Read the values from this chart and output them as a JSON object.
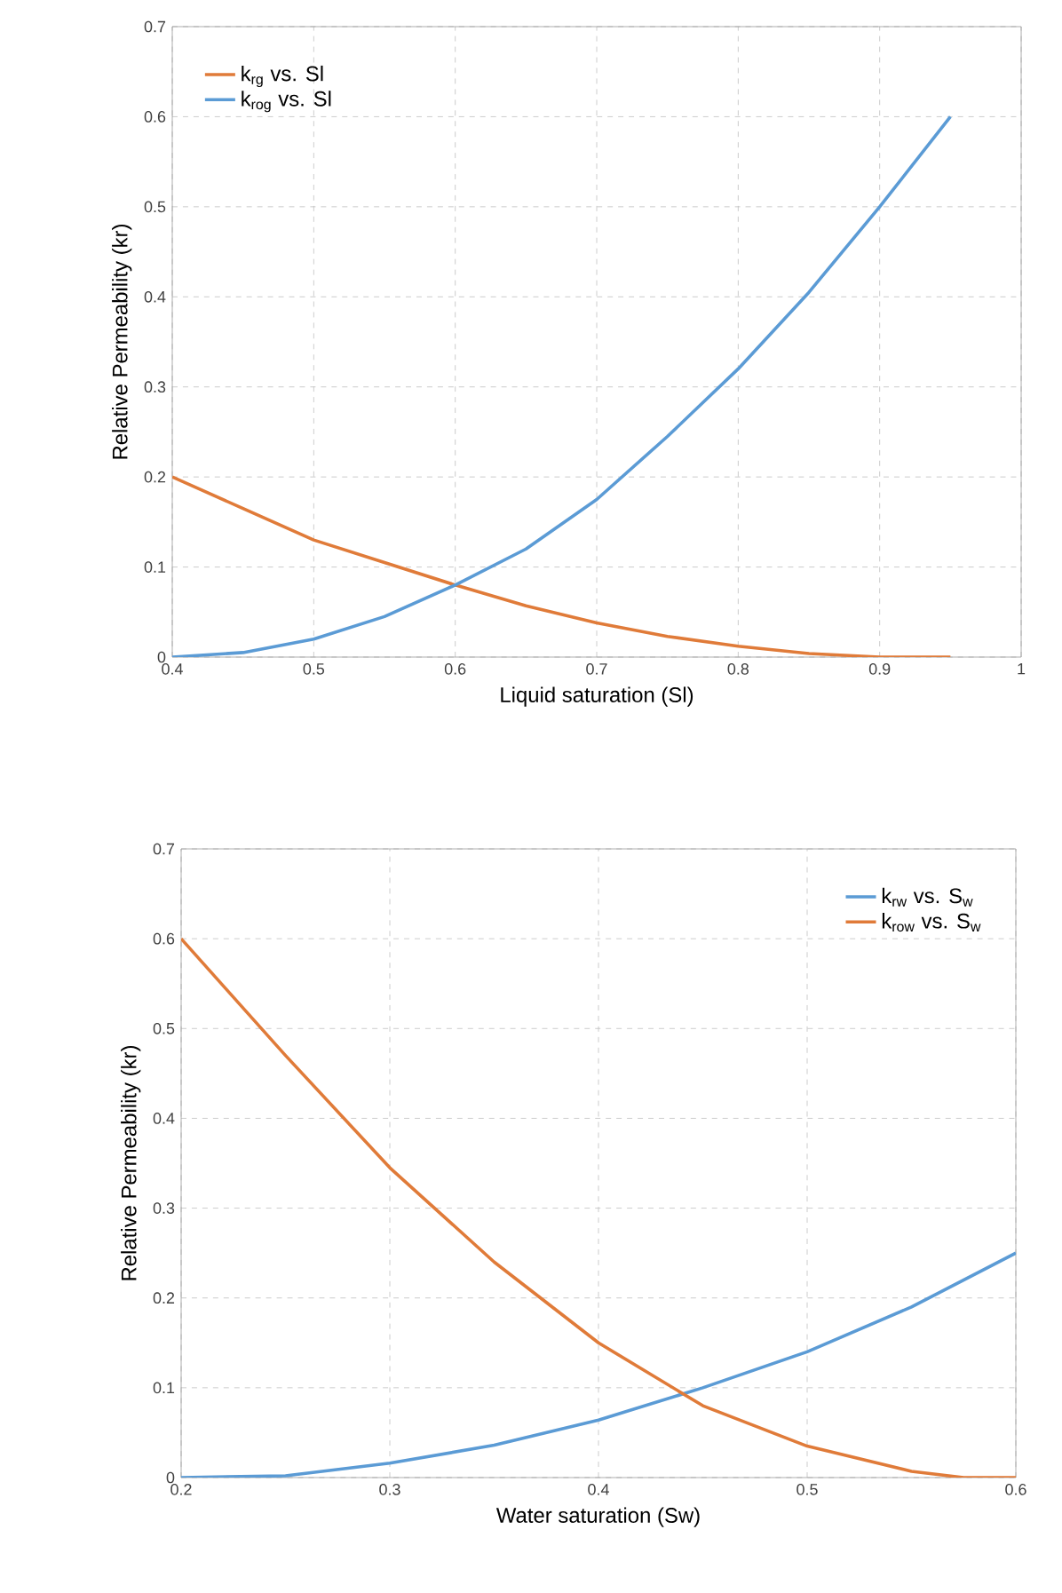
{
  "chart_data": [
    {
      "type": "line",
      "xlabel": "Liquid saturation (Sl)",
      "ylabel": "Relative Permeability (kr)",
      "xlim": [
        0.4,
        1
      ],
      "ylim": [
        0,
        0.7
      ],
      "xticks": [
        0.4,
        0.5,
        0.6,
        0.7,
        0.8,
        0.9,
        1
      ],
      "yticks": [
        0,
        0.1,
        0.2,
        0.3,
        0.4,
        0.5,
        0.6,
        0.7
      ],
      "grid": true,
      "legend": "top left",
      "marker": "none",
      "line_style": "solid",
      "series": [
        {
          "name": "k$_{rg}$ vs. Sl",
          "color": "#e07b39",
          "x": [
            0.4,
            0.45,
            0.5,
            0.55,
            0.6,
            0.65,
            0.7,
            0.75,
            0.8,
            0.85,
            0.9,
            0.95
          ],
          "values": [
            0.2,
            0.165,
            0.13,
            0.105,
            0.08,
            0.057,
            0.038,
            0.023,
            0.012,
            0.004,
            0.0,
            0.0
          ]
        },
        {
          "name": "k$_{rog}$ vs. Sl",
          "color": "#5b9bd5",
          "x": [
            0.4,
            0.45,
            0.5,
            0.55,
            0.6,
            0.65,
            0.7,
            0.75,
            0.8,
            0.85,
            0.9,
            0.95
          ],
          "values": [
            0.0,
            0.005,
            0.02,
            0.045,
            0.08,
            0.12,
            0.175,
            0.245,
            0.32,
            0.405,
            0.5,
            0.6
          ]
        }
      ]
    },
    {
      "type": "line",
      "xlabel": "Water saturation (Sw)",
      "ylabel": "Relative Permeability (kr)",
      "xlim": [
        0.2,
        0.6
      ],
      "ylim": [
        0,
        0.7
      ],
      "xticks": [
        0.2,
        0.3,
        0.4,
        0.5,
        0.6
      ],
      "yticks": [
        0,
        0.1,
        0.2,
        0.3,
        0.4,
        0.5,
        0.6,
        0.7
      ],
      "grid": true,
      "legend": "top right",
      "marker": "none",
      "line_style": "solid",
      "series": [
        {
          "name": "k$_{rw}$ vs. S$_{w}$",
          "color": "#5b9bd5",
          "x": [
            0.2,
            0.25,
            0.3,
            0.35,
            0.4,
            0.45,
            0.5,
            0.55,
            0.6
          ],
          "values": [
            0.0,
            0.002,
            0.016,
            0.036,
            0.064,
            0.1,
            0.14,
            0.19,
            0.25
          ]
        },
        {
          "name": "k$_{row}$ vs. S$_{w}$",
          "color": "#e07b39",
          "x": [
            0.2,
            0.25,
            0.3,
            0.35,
            0.4,
            0.45,
            0.5,
            0.55,
            0.575,
            0.6
          ],
          "values": [
            0.6,
            0.47,
            0.345,
            0.24,
            0.15,
            0.08,
            0.035,
            0.007,
            0.0,
            0.0
          ]
        }
      ]
    }
  ]
}
